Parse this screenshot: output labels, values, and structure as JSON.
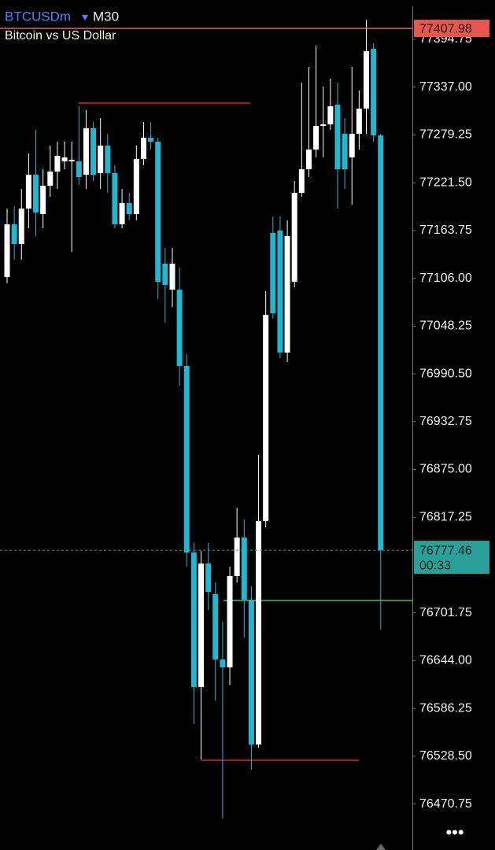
{
  "chart_data": {
    "type": "candlestick",
    "symbol": "BTCUSDm",
    "timeframe": "M30",
    "subtitle": "Bitcoin vs US Dollar",
    "bull_color": "#ffffff",
    "bear_color": "#1fb8d3",
    "ylim": [
      76415.2,
      77442.3
    ],
    "yticks": [
      {
        "value": 77394.75,
        "label": "77394.75"
      },
      {
        "value": 77337,
        "label": "77337.00"
      },
      {
        "value": 77279.25,
        "label": "77279.25"
      },
      {
        "value": 77221.5,
        "label": "77221.50"
      },
      {
        "value": 77163.75,
        "label": "77163.75"
      },
      {
        "value": 77106,
        "label": "77106.00"
      },
      {
        "value": 77048.25,
        "label": "77048.25"
      },
      {
        "value": 76990.5,
        "label": "76990.50"
      },
      {
        "value": 76932.75,
        "label": "76932.75"
      },
      {
        "value": 76875,
        "label": "76875.00"
      },
      {
        "value": 76817.25,
        "label": "76817.25"
      },
      {
        "value": 76701.75,
        "label": "76701.75"
      },
      {
        "value": 76644,
        "label": "76644.00"
      },
      {
        "value": 76586.25,
        "label": "76586.25"
      },
      {
        "value": 76528.5,
        "label": "76528.50"
      },
      {
        "value": 76470.75,
        "label": "76470.75"
      }
    ],
    "ask_price": 77407.98,
    "ask_color": "#e8574e",
    "current_price": 76777.46,
    "countdown": "00:33",
    "current_color": "#2aa198",
    "lines": [
      {
        "value": 77317.7,
        "color": "#e02424"
      },
      {
        "value": 76523.6,
        "color": "#e02424"
      },
      {
        "value": 76716.7,
        "color": "#3fbf4f"
      }
    ],
    "open": [
      77107.5,
      77171.3,
      77147.5,
      77190.3,
      77231.2,
      77183.6,
      77217.9,
      77235.0,
      77247.3,
      77247.3,
      77247.3,
      77231.2,
      77287.3,
      77233.1,
      77266.4,
      77233.1,
      77171.3,
      77196.9,
      77183.6,
      77250.2,
      77275.9,
      77271.1,
      77123.7,
      77092.3,
      77092.3,
      77000.1,
      76774.7,
      76612.1,
      76761.4,
      76724.3,
      76645.4,
      76635.9,
      76746.2,
      76792.8,
      76717.6,
      76542.7,
      76812.7,
      77160.8,
      77163.7,
      77016.3,
      77101.8,
      77209.3,
      77237.8,
      77261.6,
      77290.1,
      77292.0,
      77315.8,
      77280.6,
      77252.1,
      77280.6,
      77311.1,
      77383.3,
      77278.7
    ],
    "high": [
      77190.3,
      77193.1,
      77214.1,
      77256.9,
      77285.4,
      77237.8,
      77266.4,
      77271.1,
      77271.1,
      77271.1,
      77313.9,
      77309.2,
      77294.9,
      77299.6,
      77280.6,
      77242.6,
      77214.1,
      77209.3,
      77266.4,
      77294.9,
      77294.9,
      77275.9,
      77142.7,
      77142.7,
      77119.0,
      77014.3,
      76786.1,
      76776.6,
      76786.1,
      76738.6,
      76691.0,
      76757.6,
      76828.9,
      76814.6,
      76733.8,
      76892.6,
      77090.4,
      77180.8,
      77180.8,
      77176.0,
      77223.6,
      77342.4,
      77361.5,
      77387.1,
      77337.7,
      77347.2,
      77342.4,
      77299.6,
      77361.5,
      77332.9,
      77418.5,
      77390.0,
      77280.6
    ],
    "low": [
      77099.9,
      77128.5,
      77128.5,
      77166.5,
      77157.0,
      77166.5,
      77204.5,
      77214.1,
      77237.8,
      77138.0,
      77218.8,
      77214.1,
      77223.6,
      77214.1,
      77209.3,
      77166.5,
      77166.5,
      77176.0,
      77176.0,
      77242.6,
      77261.6,
      77080.9,
      77052.4,
      77071.4,
      76976.3,
      76757.6,
      76567.4,
      76524.6,
      76705.3,
      76595.9,
      76453.3,
      76614.9,
      76738.6,
      76672.0,
      76512.2,
      76538.8,
      76805.1,
      77057.1,
      77009.6,
      77004.8,
      77095.2,
      77204.5,
      77228.3,
      77252.1,
      77252.1,
      77285.4,
      77190.3,
      77214.1,
      77195.0,
      77261.6,
      77280.6,
      77271.1,
      76681.5
    ],
    "close": [
      77171.3,
      77147.5,
      77190.3,
      77231.2,
      77185.5,
      77217.9,
      77235.0,
      77254.0,
      77252.1,
      77249.2,
      77228.3,
      77287.3,
      77231.2,
      77266.4,
      77233.1,
      77171.3,
      77196.9,
      77183.6,
      77250.2,
      77275.9,
      77271.1,
      77101.8,
      77098.0,
      77123.7,
      77000.1,
      76774.7,
      76612.1,
      76761.4,
      76727.1,
      76645.4,
      76635.9,
      76746.2,
      76792.8,
      76717.6,
      76542.7,
      76812.7,
      77061.9,
      77063.8,
      77016.3,
      77157.0,
      77209.3,
      77237.8,
      77261.6,
      77290.1,
      77292.0,
      77313.9,
      77237.8,
      77237.8,
      77280.6,
      77311.1,
      77380.5,
      77278.7,
      76777.46
    ]
  }
}
